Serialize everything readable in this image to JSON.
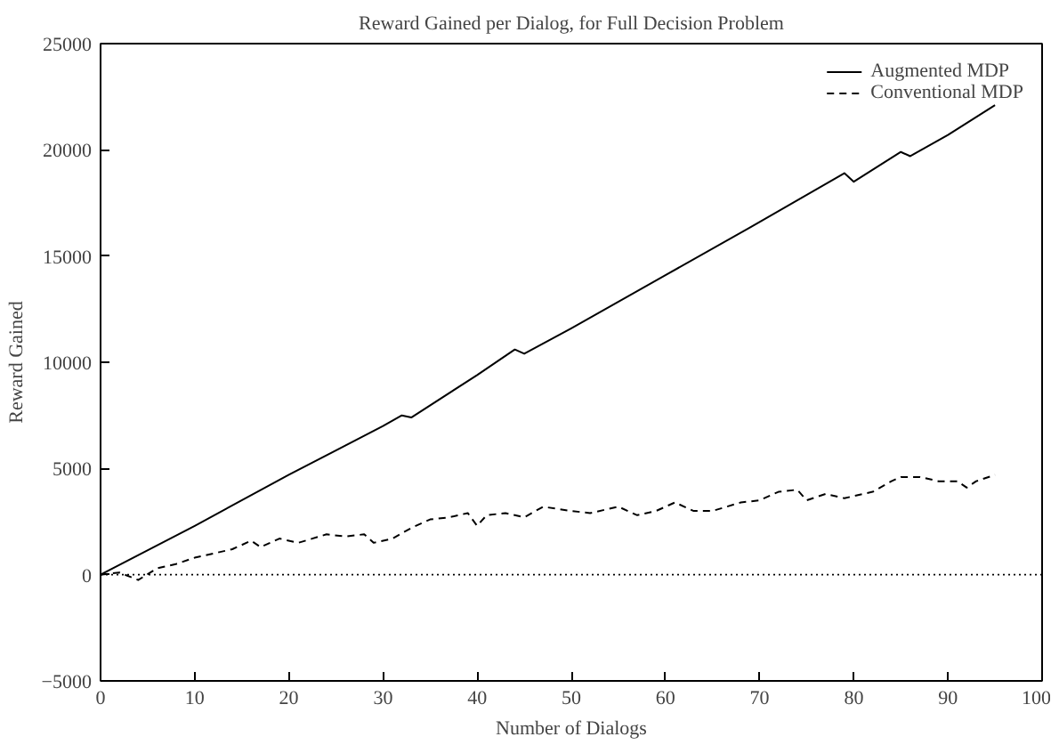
{
  "chart_data": {
    "type": "line",
    "title": "Reward Gained per Dialog, for Full Decision Problem",
    "xlabel": "Number of Dialogs",
    "ylabel": "Reward Gained",
    "xlim": [
      0,
      100
    ],
    "xticks": [
      0,
      10,
      20,
      30,
      40,
      50,
      60,
      70,
      80,
      90,
      100
    ],
    "ylim": [
      -5000,
      25000
    ],
    "yticks": [
      -5000,
      0,
      5000,
      10000,
      15000,
      20000,
      25000
    ],
    "grid": false,
    "legend": "top right",
    "ref_lines": [
      {
        "axis": "y",
        "value": 0,
        "line_style": "dotted",
        "color": "#000000"
      }
    ],
    "series": [
      {
        "name": "Augmented MDP",
        "color": "#000000",
        "line_style": "solid",
        "x": [
          0,
          10,
          20,
          30,
          32,
          33,
          40,
          44,
          45,
          50,
          60,
          70,
          79,
          80,
          85,
          86,
          90,
          95
        ],
        "values": [
          0,
          2300,
          4700,
          7000,
          7500,
          7400,
          9400,
          10600,
          10400,
          11600,
          14100,
          16600,
          18900,
          18500,
          19900,
          19700,
          20700,
          22100
        ]
      },
      {
        "name": "Conventional MDP",
        "color": "#000000",
        "line_style": "dashed",
        "x": [
          0,
          2,
          4,
          6,
          8,
          10,
          12,
          14,
          16,
          17,
          19,
          21,
          24,
          26,
          28,
          29,
          31,
          33,
          35,
          37,
          39,
          40,
          41,
          43,
          45,
          47,
          50,
          52,
          55,
          57,
          59,
          61,
          63,
          65,
          68,
          70,
          72,
          74,
          75,
          77,
          79,
          82,
          84,
          85,
          87,
          89,
          91,
          92,
          93,
          95
        ],
        "values": [
          0,
          100,
          -250,
          300,
          500,
          800,
          1000,
          1200,
          1600,
          1300,
          1700,
          1500,
          1900,
          1800,
          1900,
          1500,
          1700,
          2200,
          2600,
          2700,
          2900,
          2300,
          2800,
          2900,
          2700,
          3200,
          3000,
          2900,
          3200,
          2800,
          3000,
          3400,
          3000,
          3000,
          3400,
          3500,
          3900,
          4000,
          3500,
          3800,
          3600,
          3900,
          4400,
          4600,
          4600,
          4400,
          4400,
          4100,
          4400,
          4700
        ]
      }
    ]
  }
}
